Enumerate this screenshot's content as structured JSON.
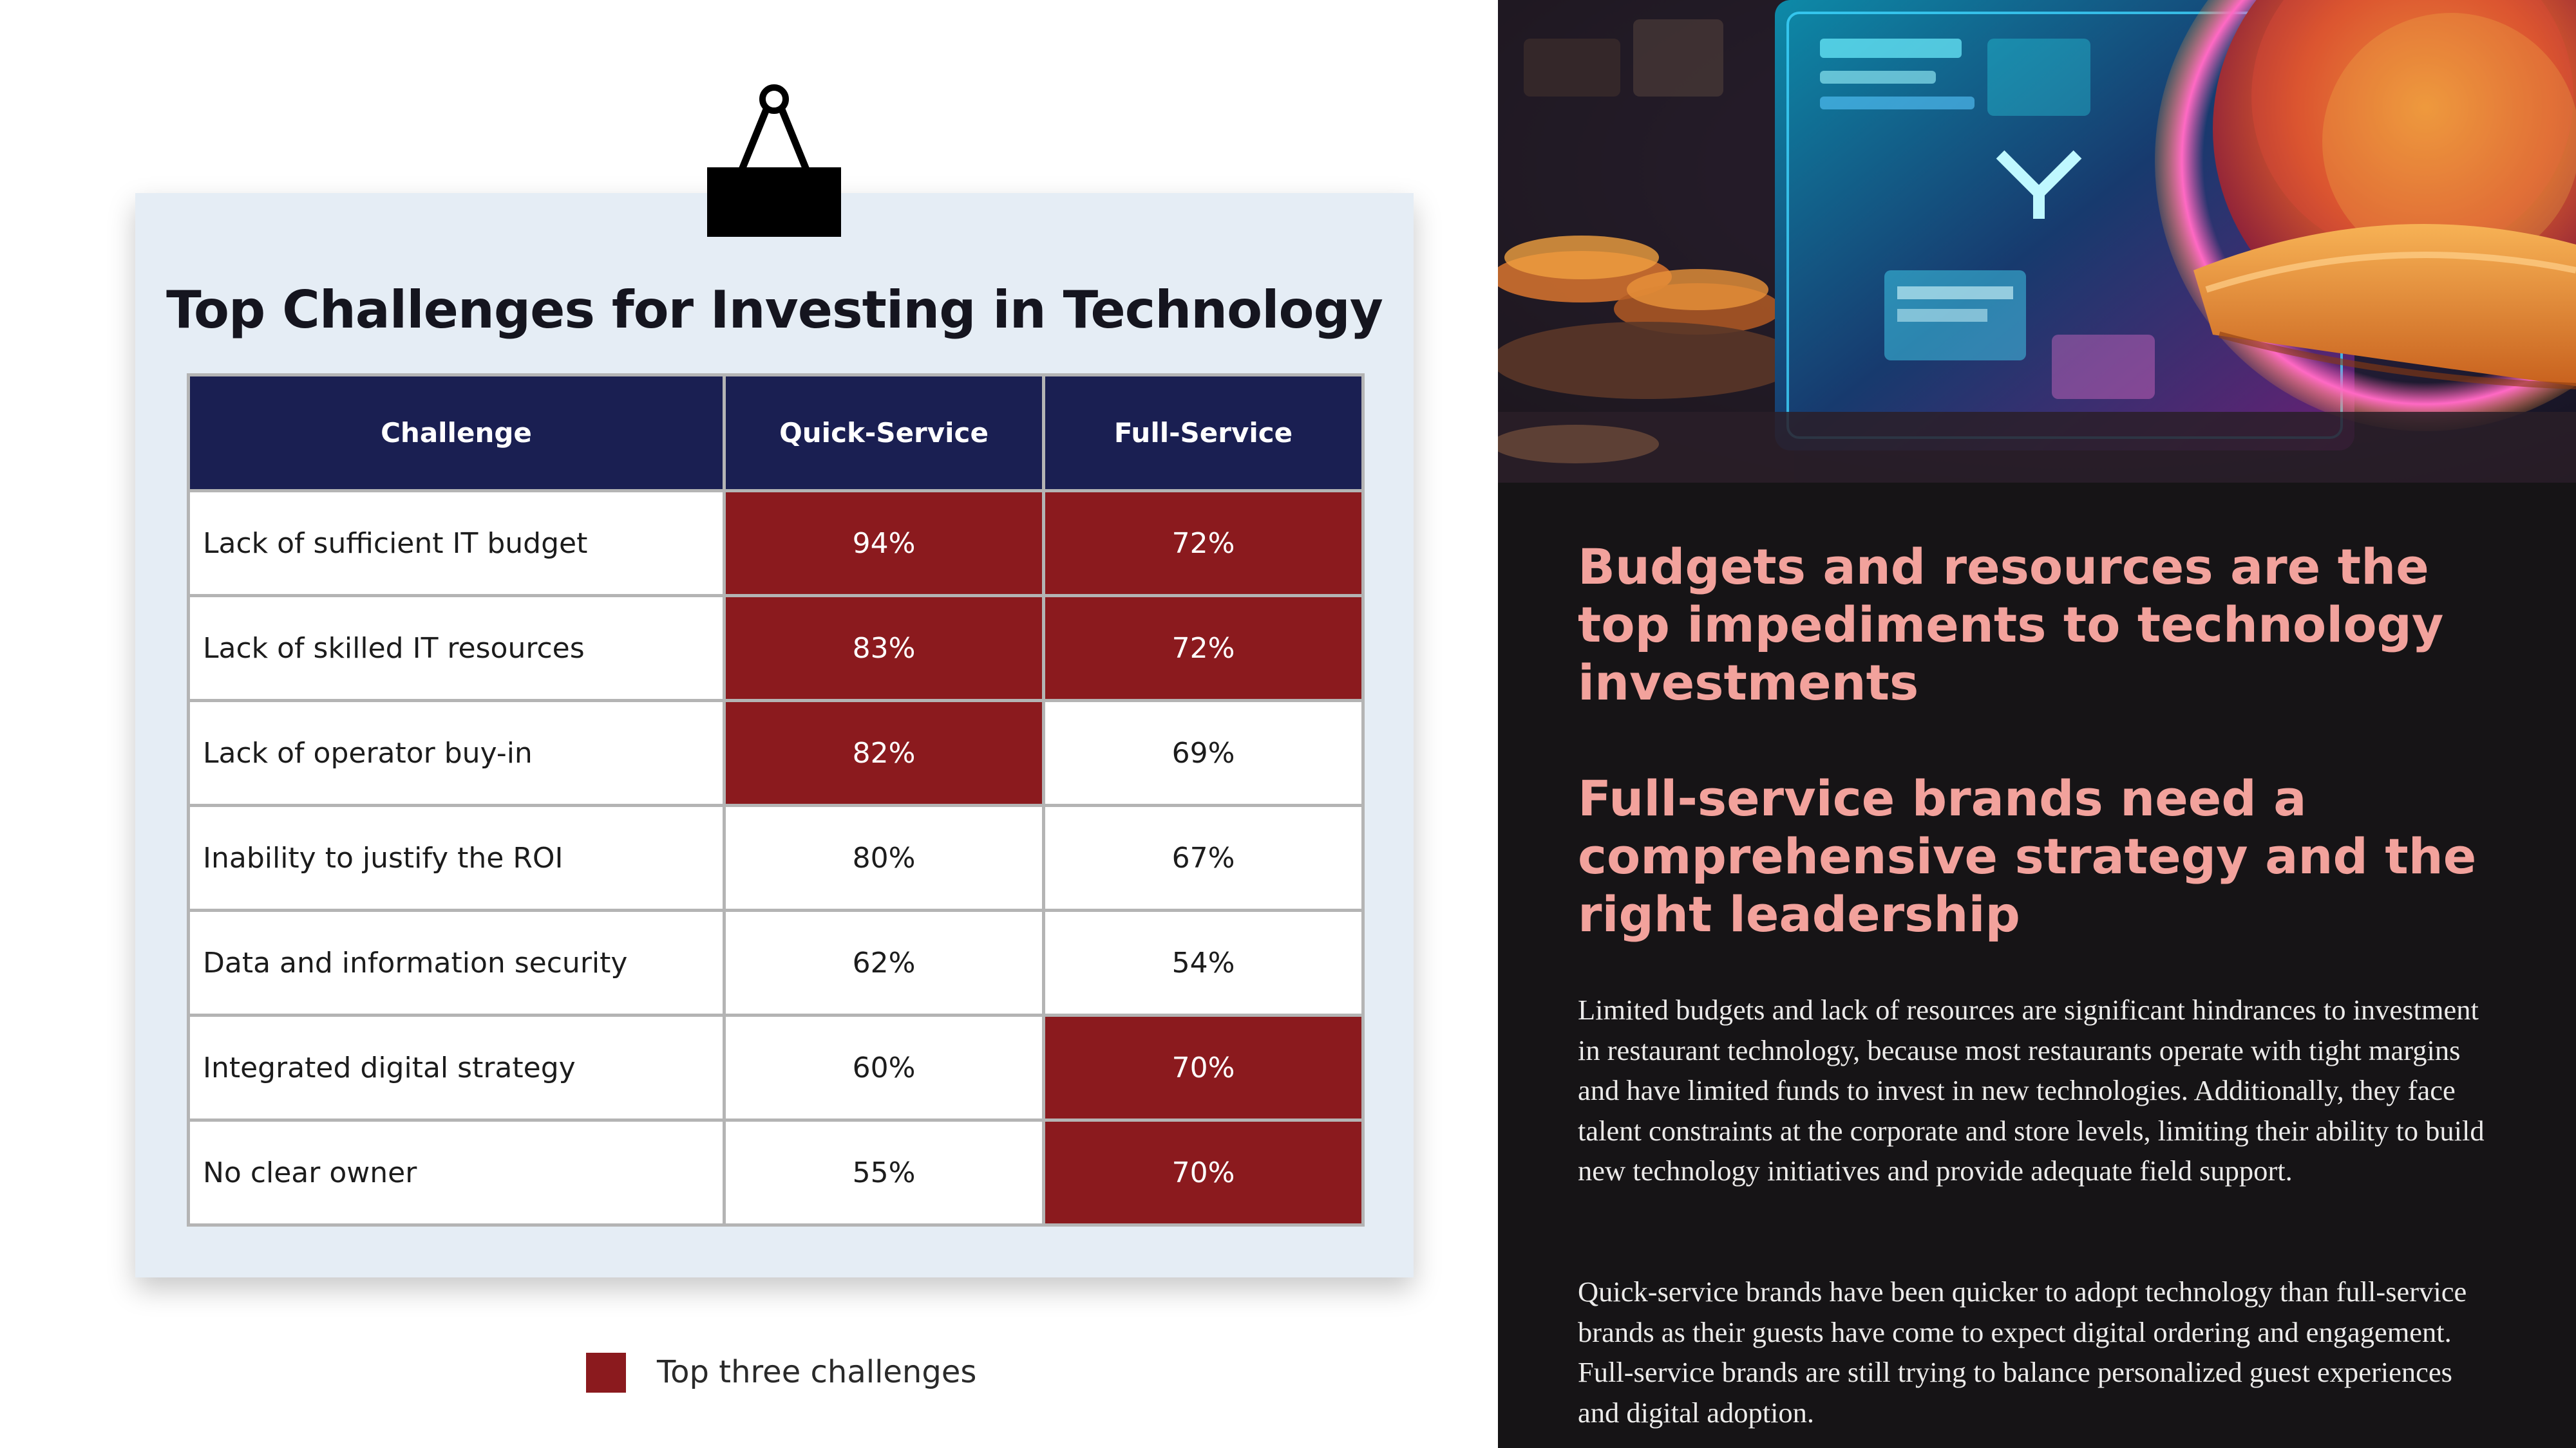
{
  "card": {
    "title": "Top Challenges for Investing in Technology"
  },
  "table": {
    "headers": [
      "Challenge",
      "Quick-Service",
      "Full-Service"
    ],
    "rows": [
      {
        "challenge": "Lack of sufficient IT budget",
        "quick": "94%",
        "full": "72%",
        "quick_top": true,
        "full_top": true
      },
      {
        "challenge": "Lack of skilled IT resources",
        "quick": "83%",
        "full": "72%",
        "quick_top": true,
        "full_top": true
      },
      {
        "challenge": "Lack of operator buy-in",
        "quick": "82%",
        "full": "69%",
        "quick_top": true,
        "full_top": false
      },
      {
        "challenge": "Inability to justify the ROI",
        "quick": "80%",
        "full": "67%",
        "quick_top": false,
        "full_top": false
      },
      {
        "challenge": "Data and information security",
        "quick": "62%",
        "full": "54%",
        "quick_top": false,
        "full_top": false
      },
      {
        "challenge": "Integrated digital strategy",
        "quick": "60%",
        "full": "70%",
        "quick_top": false,
        "full_top": true
      },
      {
        "challenge": "No clear owner",
        "quick": "55%",
        "full": "70%",
        "quick_top": false,
        "full_top": true
      }
    ]
  },
  "legend": {
    "label": "Top three challenges",
    "color": "#8b1a1e"
  },
  "colors": {
    "header_bg": "#1a1f52",
    "highlight": "#8b1a1e",
    "card_bg": "#e5edf5",
    "right_bg": "#161416",
    "heading": "#f2a29c"
  },
  "right": {
    "heading1": "Budgets and resources are the top impediments to technology investments",
    "heading2": "Full-service brands need a comprehensive strategy and the right leadership",
    "paragraph1": "Limited budgets and lack of resources are significant hindrances to investment in restaurant technology, because most restaurants operate with tight margins and have limited funds to invest in new technologies. Additionally, they face talent constraints at the corporate and store levels, limiting their ability to build new technology initiatives and provide adequate field support.",
    "paragraph2": "Quick-service brands have been quicker to adopt technology than full-service brands as their guests have come to expect digital ordering and engagement. Full-service brands are still trying to balance personalized guest experiences and digital adoption."
  },
  "icons": {
    "clip": "binder-clip-icon",
    "hero": "restaurant-technology-illustration"
  }
}
